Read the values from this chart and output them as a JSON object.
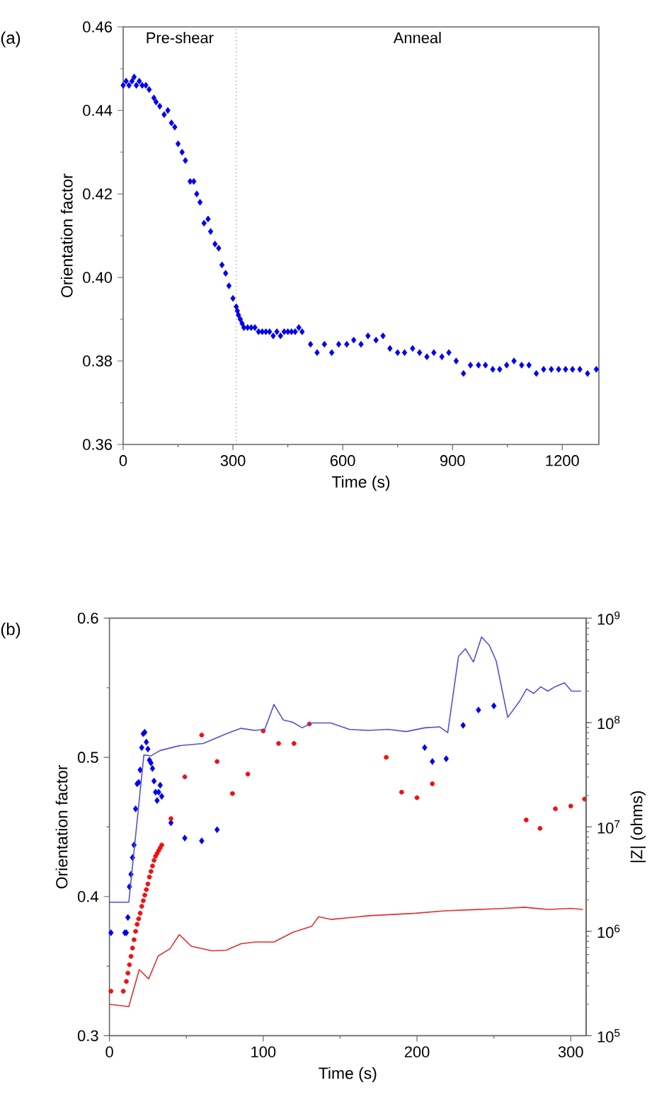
{
  "chart_data": [
    {
      "type": "scatter",
      "xlabel": "Time (s)",
      "ylabel": "Orientation factor",
      "xlim": [
        0,
        1300
      ],
      "ylim": [
        0.36,
        0.46
      ],
      "xticks": [
        0,
        300,
        600,
        900,
        1200
      ],
      "yticks": [
        {
          "value": 0.36,
          "label": "0.36"
        },
        {
          "value": 0.38,
          "label": "0.38"
        },
        {
          "value": 0.4,
          "label": "0.40"
        },
        {
          "value": 0.42,
          "label": "0.42"
        },
        {
          "value": 0.44,
          "label": "0.44"
        },
        {
          "value": 0.46,
          "label": "0.46"
        }
      ],
      "ref_lines": [
        {
          "axis": "x",
          "value": 309,
          "color": "#808080",
          "line_style": "dotted"
        }
      ],
      "annotations": [
        "(a)",
        "Pre-shear",
        "Anneal"
      ],
      "series": [
        {
          "type": "scatter",
          "color": "#0000ee",
          "marker": "diamond",
          "x": [
            0,
            8,
            16,
            24,
            30,
            36,
            44,
            52,
            62,
            71,
            84,
            90,
            100,
            112,
            122,
            132,
            141,
            150,
            161,
            170,
            183,
            193,
            201,
            210,
            221,
            232,
            239,
            251,
            261,
            270,
            280,
            289,
            300,
            309,
            312,
            315,
            320,
            325,
            330,
            340,
            350,
            360,
            370,
            380,
            390,
            400,
            410,
            420,
            430,
            440,
            450,
            460,
            470,
            480,
            489,
            512,
            530,
            550,
            570,
            589,
            611,
            630,
            650,
            669,
            691,
            710,
            729,
            750,
            769,
            791,
            810,
            830,
            849,
            871,
            890,
            910,
            930,
            949,
            971,
            990,
            1010,
            1029,
            1048,
            1068,
            1089,
            1109,
            1129,
            1149,
            1170,
            1190,
            1209,
            1228,
            1248,
            1269,
            1293
          ],
          "values": [
            0.446,
            0.447,
            0.446,
            0.447,
            0.448,
            0.446,
            0.447,
            0.446,
            0.446,
            0.445,
            0.443,
            0.442,
            0.441,
            0.439,
            0.44,
            0.437,
            0.436,
            0.432,
            0.43,
            0.428,
            0.423,
            0.423,
            0.42,
            0.418,
            0.413,
            0.414,
            0.411,
            0.408,
            0.407,
            0.403,
            0.401,
            0.398,
            0.395,
            0.393,
            0.392,
            0.391,
            0.39,
            0.389,
            0.388,
            0.388,
            0.388,
            0.388,
            0.387,
            0.387,
            0.387,
            0.387,
            0.386,
            0.387,
            0.386,
            0.387,
            0.387,
            0.387,
            0.387,
            0.388,
            0.387,
            0.384,
            0.382,
            0.384,
            0.382,
            0.384,
            0.384,
            0.385,
            0.384,
            0.386,
            0.385,
            0.386,
            0.383,
            0.382,
            0.382,
            0.383,
            0.382,
            0.381,
            0.382,
            0.381,
            0.382,
            0.38,
            0.377,
            0.379,
            0.379,
            0.379,
            0.378,
            0.378,
            0.379,
            0.38,
            0.379,
            0.379,
            0.377,
            0.378,
            0.378,
            0.378,
            0.378,
            0.378,
            0.378,
            0.377,
            0.378
          ]
        }
      ]
    },
    {
      "type": "scatter",
      "xlabel": "Time (s)",
      "ylabel": "Orientation factor",
      "y2label": "|Z|  (ohms)",
      "log": "y2",
      "xlim": [
        0,
        310
      ],
      "ylim": [
        0.3,
        0.6
      ],
      "y2lim": [
        100000,
        1000000000
      ],
      "xticks": [
        0,
        100,
        200,
        300
      ],
      "yticks": [
        0.3,
        0.4,
        0.5,
        0.6
      ],
      "y2ticks": [
        {
          "value": 100000,
          "label": "10$^{5}$"
        },
        {
          "value": 1000000,
          "label": "10$^{6}$"
        },
        {
          "value": 10000000,
          "label": "10$^{7}$"
        },
        {
          "value": 100000000,
          "label": "10$^{8}$"
        },
        {
          "value": 1000000000,
          "label": "10$^{9}$"
        }
      ],
      "annotations": [
        "(b)"
      ],
      "series": [
        {
          "type": "line",
          "axis": "y2",
          "color": "#5050d8",
          "x": [
            0,
            12.6,
            22.4,
            27,
            33,
            45.5,
            61,
            76,
            85.5,
            94.7,
            101,
            104.5,
            107,
            113,
            119,
            125.4,
            131.6,
            144,
            156,
            168.5,
            181,
            193,
            205,
            214.6,
            220,
            227,
            231.5,
            236.7,
            242,
            247,
            251.5,
            259,
            266.7,
            271.3,
            275.9,
            280.5,
            285.1,
            289.7,
            295.9,
            300.5,
            306.7
          ],
          "values": [
            1900000.0,
            1900000.0,
            49000000.0,
            48000000.0,
            54000000.0,
            60000000.0,
            63000000.0,
            78000000.0,
            88000000.0,
            84000000.0,
            86000000.0,
            118000000.0,
            149000000.0,
            106000000.0,
            101000000.0,
            89000000.0,
            99000000.0,
            99000000.0,
            86000000.0,
            84000000.0,
            86000000.0,
            82000000.0,
            89000000.0,
            91000000.0,
            80000000.0,
            430000000.0,
            510000000.0,
            380000000.0,
            660000000.0,
            550000000.0,
            390000000.0,
            112000000.0,
            160000000.0,
            210000000.0,
            190000000.0,
            220000000.0,
            200000000.0,
            220000000.0,
            240000000.0,
            200000000.0,
            200000000.0
          ]
        },
        {
          "type": "line",
          "axis": "y2",
          "color": "#e03030",
          "x": [
            0,
            12.6,
            19.4,
            25.5,
            31.7,
            39.3,
            45.5,
            53.2,
            67,
            76,
            85.5,
            94.7,
            107,
            119.3,
            131.6,
            136,
            144,
            168.5,
            199,
            217.6,
            236,
            254.5,
            270,
            285,
            300,
            308
          ],
          "values": [
            200000.0,
            190000.0,
            430000.0,
            350000.0,
            580000.0,
            680000.0,
            930000.0,
            720000.0,
            650000.0,
            660000.0,
            760000.0,
            790000.0,
            790000.0,
            980000.0,
            1120000.0,
            1380000.0,
            1300000.0,
            1410000.0,
            1490000.0,
            1570000.0,
            1610000.0,
            1650000.0,
            1700000.0,
            1620000.0,
            1660000.0,
            1620000.0
          ]
        },
        {
          "type": "scatter",
          "color": "#0000ee",
          "marker": "diamond",
          "x": [
            1,
            10,
            11,
            12,
            13,
            14,
            15,
            16,
            17,
            18,
            19,
            20,
            21,
            22,
            23,
            24,
            25,
            26,
            27,
            28,
            29,
            30,
            31,
            32,
            33,
            34,
            40,
            49,
            60,
            70,
            205,
            210,
            219,
            230,
            240,
            250
          ],
          "values": [
            0.374,
            0.374,
            0.374,
            0.385,
            0.407,
            0.416,
            0.428,
            0.437,
            0.463,
            0.481,
            0.482,
            0.491,
            0.507,
            0.517,
            0.518,
            0.511,
            0.506,
            0.498,
            0.496,
            0.492,
            0.483,
            0.475,
            0.469,
            0.475,
            0.48,
            0.472,
            0.453,
            0.442,
            0.44,
            0.448,
            0.507,
            0.497,
            0.499,
            0.523,
            0.534,
            0.537
          ]
        },
        {
          "type": "scatter",
          "color": "#ee1111",
          "marker": "circle",
          "x": [
            1,
            9,
            11,
            12,
            13,
            14,
            15,
            16,
            17,
            18,
            19,
            20,
            21,
            22,
            23,
            24,
            25,
            26,
            27,
            28,
            29,
            30,
            31,
            32,
            33,
            34,
            40,
            49,
            60,
            70,
            80,
            90,
            100,
            110,
            120,
            130,
            180,
            190,
            200,
            210,
            271,
            280,
            290,
            300,
            309
          ],
          "values": [
            0.332,
            0.332,
            0.339,
            0.345,
            0.351,
            0.357,
            0.363,
            0.369,
            0.375,
            0.38,
            0.384,
            0.388,
            0.393,
            0.397,
            0.401,
            0.405,
            0.409,
            0.414,
            0.418,
            0.422,
            0.426,
            0.429,
            0.431,
            0.433,
            0.435,
            0.437,
            0.456,
            0.486,
            0.516,
            0.497,
            0.474,
            0.488,
            0.519,
            0.51,
            0.51,
            0.524,
            0.5,
            0.475,
            0.471,
            0.481,
            0.455,
            0.449,
            0.463,
            0.465,
            0.47
          ]
        }
      ]
    }
  ]
}
